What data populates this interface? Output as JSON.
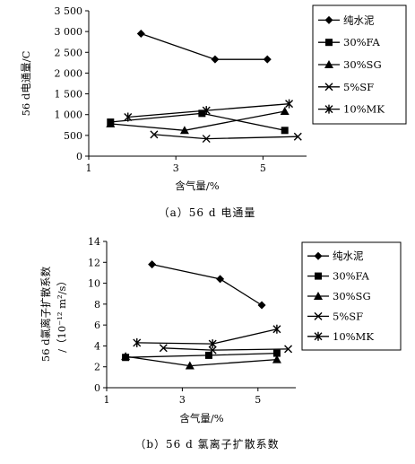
{
  "chart_data": [
    {
      "type": "line",
      "caption": "（a）56 d 电通量",
      "xlabel": "含气量/%",
      "ylabel": "56 d电通量/C",
      "xlim": [
        1,
        6
      ],
      "ylim": [
        0,
        3500
      ],
      "xticks": [
        "1",
        "3",
        "5"
      ],
      "xtick_values": [
        1,
        3,
        5
      ],
      "yticks": [
        "0",
        "500",
        "1 000",
        "1 500",
        "2 000",
        "2 500",
        "3 000",
        "3 500"
      ],
      "ytick_values": [
        0,
        500,
        1000,
        1500,
        2000,
        2500,
        3000,
        3500
      ],
      "grid": false,
      "legend_position": "right",
      "series": [
        {
          "name": "纯水泥",
          "marker": "diamond",
          "x": [
            2.2,
            3.9,
            5.1
          ],
          "y": [
            2950,
            2330,
            2330
          ]
        },
        {
          "name": "30%FA",
          "marker": "square",
          "x": [
            1.5,
            3.6,
            5.5
          ],
          "y": [
            820,
            1030,
            620
          ]
        },
        {
          "name": "30%SG",
          "marker": "triangle",
          "x": [
            1.5,
            3.2,
            5.5
          ],
          "y": [
            780,
            620,
            1080
          ]
        },
        {
          "name": "5%SF",
          "marker": "x",
          "x": [
            2.5,
            3.7,
            5.8
          ],
          "y": [
            520,
            420,
            470
          ]
        },
        {
          "name": "10%MK",
          "marker": "asterisk",
          "x": [
            1.9,
            3.7,
            5.6
          ],
          "y": [
            940,
            1100,
            1260
          ]
        }
      ]
    },
    {
      "type": "line",
      "caption": "（b）56 d 氯离子扩散系数",
      "xlabel": "含气量/%",
      "ylabel": "56 d氯离子扩散系数",
      "ylabel_unit": "/（10⁻¹² m²/s）",
      "xlim": [
        1,
        6
      ],
      "ylim": [
        0,
        14
      ],
      "xticks": [
        "1",
        "3",
        "5"
      ],
      "xtick_values": [
        1,
        3,
        5
      ],
      "yticks": [
        "0",
        "2",
        "4",
        "6",
        "8",
        "10",
        "12",
        "14"
      ],
      "ytick_values": [
        0,
        2,
        4,
        6,
        8,
        10,
        12,
        14
      ],
      "grid": false,
      "legend_position": "right",
      "series": [
        {
          "name": "纯水泥",
          "marker": "diamond",
          "x": [
            2.2,
            4.0,
            5.1
          ],
          "y": [
            11.8,
            10.4,
            7.9
          ]
        },
        {
          "name": "30%FA",
          "marker": "square",
          "x": [
            1.5,
            3.7,
            5.5
          ],
          "y": [
            2.9,
            3.1,
            3.3
          ]
        },
        {
          "name": "30%SG",
          "marker": "triangle",
          "x": [
            1.5,
            3.2,
            5.5
          ],
          "y": [
            3.0,
            2.1,
            2.7
          ]
        },
        {
          "name": "5%SF",
          "marker": "x",
          "x": [
            2.5,
            3.8,
            5.8
          ],
          "y": [
            3.8,
            3.6,
            3.7
          ]
        },
        {
          "name": "10%MK",
          "marker": "asterisk",
          "x": [
            1.8,
            3.8,
            5.5
          ],
          "y": [
            4.3,
            4.2,
            5.6
          ]
        }
      ]
    }
  ]
}
